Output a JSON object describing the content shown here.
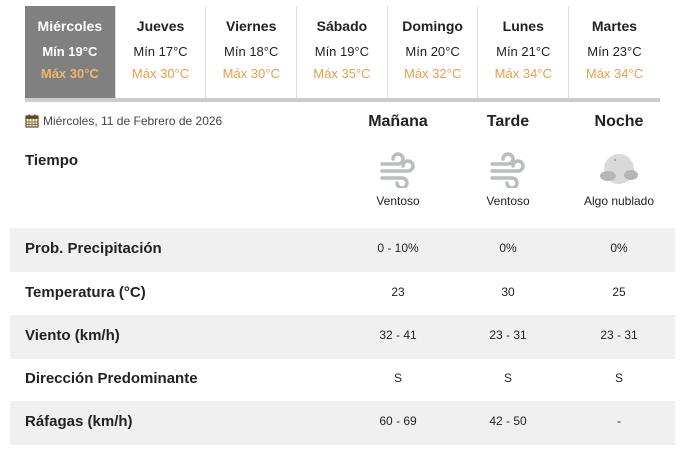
{
  "days": [
    {
      "name": "Miércoles",
      "min": "Mín 19°C",
      "max": "Máx 30°C",
      "selected": true
    },
    {
      "name": "Jueves",
      "min": "Mín 17°C",
      "max": "Máx 30°C"
    },
    {
      "name": "Viernes",
      "min": "Mín 18°C",
      "max": "Máx 30°C"
    },
    {
      "name": "Sábado",
      "min": "Mín 19°C",
      "max": "Máx 35°C"
    },
    {
      "name": "Domingo",
      "min": "Mín 20°C",
      "max": "Máx 32°C"
    },
    {
      "name": "Lunes",
      "min": "Mín 21°C",
      "max": "Máx 34°C"
    },
    {
      "name": "Martes",
      "min": "Mín 23°C",
      "max": "Máx 34°C"
    }
  ],
  "date": "Miércoles, 11 de Febrero de 2026",
  "columns": [
    "Mañana",
    "Tarde",
    "Noche"
  ],
  "tiempo": {
    "label": "Tiempo",
    "values": [
      {
        "icon": "wind-icon",
        "text": "Ventoso"
      },
      {
        "icon": "wind-icon",
        "text": "Ventoso"
      },
      {
        "icon": "partly-cloudy-night-icon",
        "text": "Algo nublado"
      }
    ]
  },
  "rows": [
    {
      "label": "Prob. Precipitación",
      "values": [
        "0 - 10%",
        "0%",
        "0%"
      ]
    },
    {
      "label": "Temperatura (°C)",
      "values": [
        "23",
        "30",
        "25"
      ]
    },
    {
      "label": "Viento (km/h)",
      "values": [
        "32 - 41",
        "23 - 31",
        "23 - 31"
      ]
    },
    {
      "label": "Dirección Predominante",
      "values": [
        "S",
        "S",
        "S"
      ]
    },
    {
      "label": "Ráfagas (km/h)",
      "values": [
        "60 - 69",
        "42 - 50",
        "-"
      ]
    }
  ],
  "colors": {
    "selected_tab": "#808080",
    "max_temp": "#e8a04a",
    "row_alt": "#f0f0f0"
  }
}
